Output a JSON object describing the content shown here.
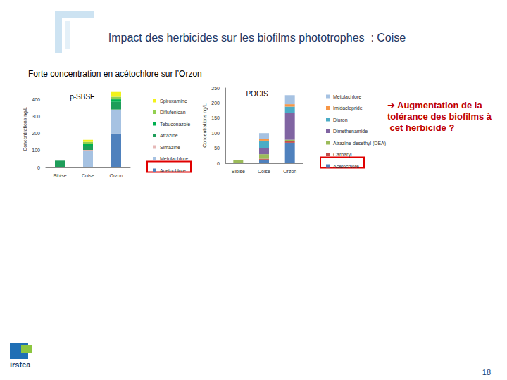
{
  "slide": {
    "title": "Impact des herbicides sur les biofilms phototrophes  : Coise",
    "subtitle": "Forte concentration en acétochlore sur l’Orzon",
    "annotation": "➔ Augmentation de la tolérance des biofilms à cet herbicide ?",
    "page_number": "18",
    "logo": "irstea"
  },
  "chart_data": [
    {
      "type": "bar",
      "title": "p-SBSE",
      "y_label": "Concentrations ng/L",
      "categories": [
        "Bibise",
        "Coise",
        "Orzon"
      ],
      "stacked": true,
      "grid": false,
      "legend": "right",
      "ylim": [
        0,
        450
      ],
      "yticks": [
        0,
        100,
        200,
        300,
        400
      ],
      "series": [
        {
          "name": "Spiroxamine",
          "color": "#f2f21a",
          "values": [
            0,
            12,
            28
          ]
        },
        {
          "name": "Diflufenican",
          "color": "#92d050",
          "values": [
            0,
            10,
            15
          ]
        },
        {
          "name": "Tebuconazole",
          "color": "#00b050",
          "values": [
            0,
            12,
            15
          ]
        },
        {
          "name": "Atrazine",
          "color": "#1e9e5a",
          "values": [
            40,
            25,
            45
          ]
        },
        {
          "name": "Simazine",
          "color": "#e6b9b8",
          "values": [
            0,
            8,
            5
          ]
        },
        {
          "name": "Metolachlore",
          "color": "#a6c2e2",
          "values": [
            0,
            95,
            135
          ]
        },
        {
          "name": "Acetochlore",
          "color": "#4f81bd",
          "values": [
            0,
            0,
            200
          ]
        }
      ]
    },
    {
      "type": "bar",
      "title": "POCIS",
      "y_label": "Concentrations ng/L",
      "categories": [
        "Bibise",
        "Coise",
        "Orzon"
      ],
      "stacked": true,
      "grid": false,
      "legend": "right",
      "ylim": [
        0,
        250
      ],
      "yticks": [
        0,
        50,
        100,
        150,
        200,
        250
      ],
      "series": [
        {
          "name": "Metolachlore",
          "color": "#a6c2e2",
          "values": [
            0,
            20,
            30
          ]
        },
        {
          "name": "Imidaclopride",
          "color": "#f79646",
          "values": [
            0,
            5,
            8
          ]
        },
        {
          "name": "Diuron",
          "color": "#4bacc6",
          "values": [
            0,
            25,
            20
          ]
        },
        {
          "name": "Dimethenamide",
          "color": "#8064a2",
          "values": [
            0,
            20,
            90
          ]
        },
        {
          "name": "Atrazine-desethyl (DEA)",
          "color": "#9bbb59",
          "values": [
            10,
            15,
            5
          ]
        },
        {
          "name": "Carbaryl",
          "color": "#c0504d",
          "values": [
            0,
            3,
            5
          ]
        },
        {
          "name": "Acetochlore",
          "color": "#4f81bd",
          "values": [
            0,
            12,
            68
          ]
        }
      ]
    }
  ]
}
